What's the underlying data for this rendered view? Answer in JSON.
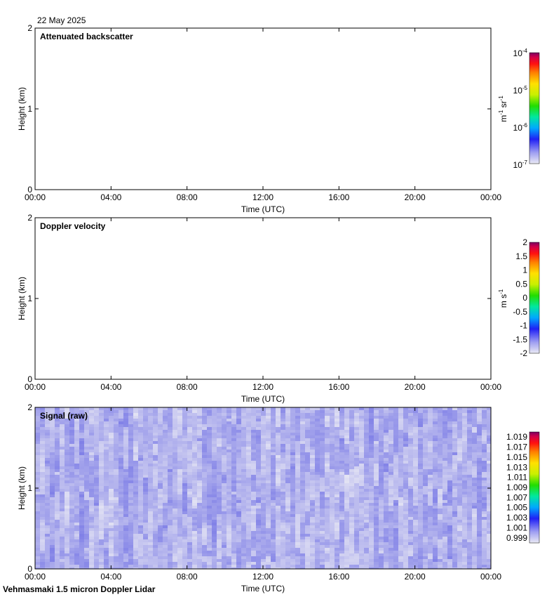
{
  "date": "22 May 2025",
  "footer": "Vehmasmaki 1.5 micron Doppler Lidar",
  "chart_data": [
    {
      "type": "heatmap",
      "title": "Attenuated backscatter",
      "xlabel": "Time (UTC)",
      "ylabel": "Height (km)",
      "x_ticks": [
        "00:00",
        "04:00",
        "08:00",
        "12:00",
        "16:00",
        "20:00",
        "00:00"
      ],
      "y_ticks": [
        "0",
        "1",
        "2"
      ],
      "ylim": [
        0,
        2
      ],
      "colorbar": {
        "scale": "log",
        "unit": "m-1 sr-1",
        "tick_labels": [
          "10-7",
          "10-6",
          "10-5",
          "10-4"
        ]
      },
      "has_data": false
    },
    {
      "type": "heatmap",
      "title": "Doppler velocity",
      "xlabel": "Time (UTC)",
      "ylabel": "Height (km)",
      "x_ticks": [
        "00:00",
        "04:00",
        "08:00",
        "12:00",
        "16:00",
        "20:00",
        "00:00"
      ],
      "y_ticks": [
        "0",
        "1",
        "2"
      ],
      "ylim": [
        0,
        2
      ],
      "colorbar": {
        "scale": "linear",
        "unit": "m s-1",
        "tick_labels": [
          "-2",
          "-1.5",
          "-1",
          "-0.5",
          "0",
          "0.5",
          "1",
          "1.5",
          "2"
        ],
        "range": [
          -2,
          2
        ]
      },
      "has_data": false
    },
    {
      "type": "heatmap",
      "title": "Signal (raw)",
      "xlabel": "Time (UTC)",
      "ylabel": "Height (km)",
      "x_ticks": [
        "00:00",
        "04:00",
        "08:00",
        "12:00",
        "16:00",
        "20:00",
        "00:00"
      ],
      "y_ticks": [
        "0",
        "1",
        "2"
      ],
      "ylim": [
        0,
        2
      ],
      "colorbar": {
        "scale": "linear",
        "unit": "",
        "tick_labels": [
          "0.999",
          "1.001",
          "1.003",
          "1.005",
          "1.007",
          "1.009",
          "1.011",
          "1.013",
          "1.015",
          "1.017",
          "1.019"
        ],
        "range": [
          0.998,
          1.02
        ]
      },
      "has_data": true,
      "value_range_observed": [
        0.998,
        1.003
      ]
    }
  ]
}
